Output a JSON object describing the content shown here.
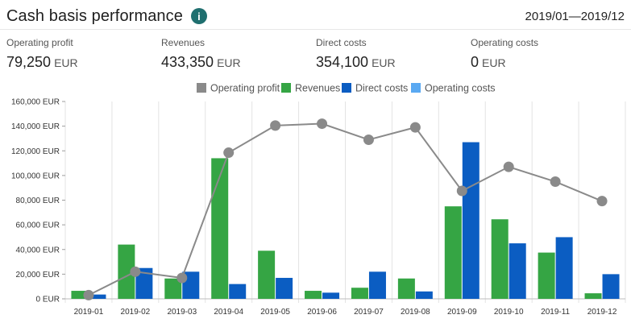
{
  "header": {
    "title": "Cash basis performance",
    "info_icon": "info-icon",
    "period": "2019/01—2019/12"
  },
  "metrics": [
    {
      "label": "Operating profit",
      "value": "79,250",
      "unit": "EUR"
    },
    {
      "label": "Revenues",
      "value": "433,350",
      "unit": "EUR"
    },
    {
      "label": "Direct costs",
      "value": "354,100",
      "unit": "EUR"
    },
    {
      "label": "Operating costs",
      "value": "0",
      "unit": "EUR"
    }
  ],
  "colors": {
    "operating_profit": "#8a8a8a",
    "revenues": "#35a544",
    "direct_costs": "#0b5dc2",
    "operating_costs": "#5aa9f2",
    "info_icon": "#1f6f6f"
  },
  "chart_data": {
    "type": "bar",
    "categories": [
      "2019-01",
      "2019-02",
      "2019-03",
      "2019-04",
      "2019-05",
      "2019-06",
      "2019-07",
      "2019-08",
      "2019-09",
      "2019-10",
      "2019-11",
      "2019-12"
    ],
    "series": [
      {
        "name": "Operating profit",
        "kind": "line",
        "values": [
          3000,
          22000,
          17000,
          118500,
          140500,
          142000,
          129000,
          139000,
          87500,
          107000,
          95000,
          79250
        ]
      },
      {
        "name": "Revenues",
        "kind": "bar",
        "values": [
          6500,
          44000,
          16500,
          114000,
          39000,
          6500,
          9000,
          16500,
          75000,
          64500,
          37500,
          4500
        ]
      },
      {
        "name": "Direct costs",
        "kind": "bar",
        "values": [
          3500,
          25000,
          22000,
          12000,
          17000,
          5000,
          22000,
          6000,
          127000,
          45000,
          50000,
          20000
        ]
      },
      {
        "name": "Operating costs",
        "kind": "bar",
        "values": [
          0,
          0,
          0,
          0,
          0,
          0,
          0,
          0,
          0,
          0,
          0,
          0
        ]
      }
    ],
    "y_ticks": [
      "0 EUR",
      "20,000 EUR",
      "40,000 EUR",
      "60,000 EUR",
      "80,000 EUR",
      "100,000 EUR",
      "120,000 EUR",
      "140,000 EUR",
      "160,000 EUR"
    ],
    "ylim": [
      0,
      160000
    ],
    "grid": "vertical",
    "legend_position": "top-center",
    "title": "",
    "xlabel": "",
    "ylabel": ""
  }
}
